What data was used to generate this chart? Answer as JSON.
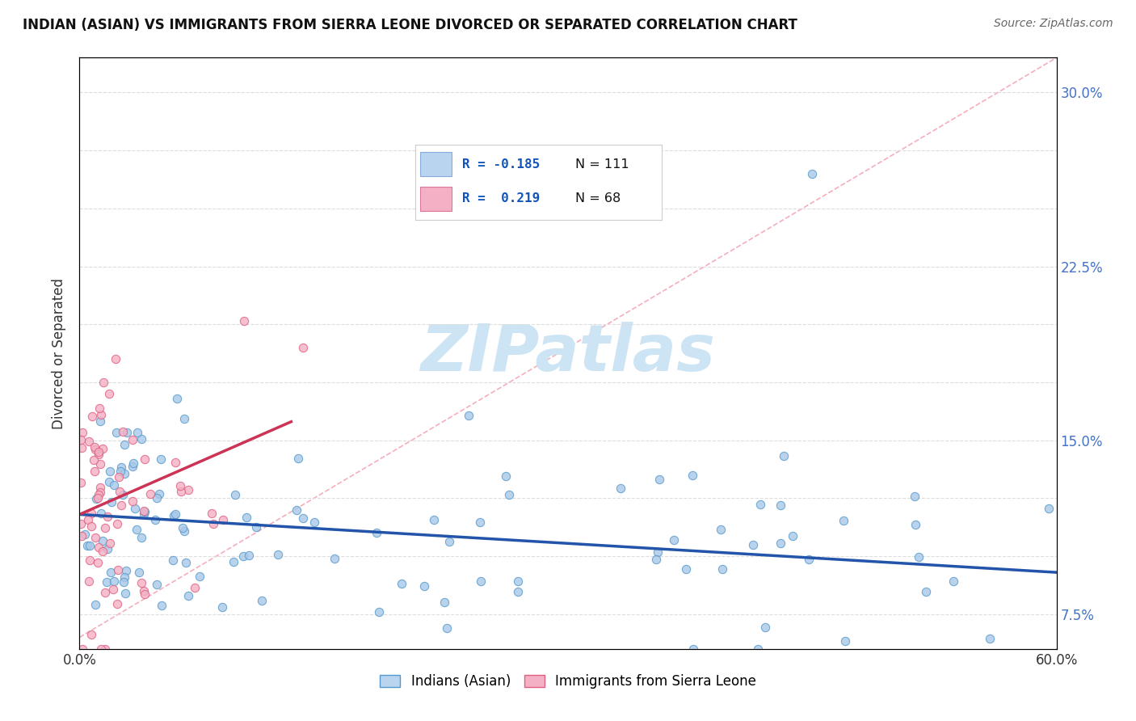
{
  "title": "INDIAN (ASIAN) VS IMMIGRANTS FROM SIERRA LEONE DIVORCED OR SEPARATED CORRELATION CHART",
  "source": "Source: ZipAtlas.com",
  "ylabel": "Divorced or Separated",
  "xlim": [
    0.0,
    0.6
  ],
  "ylim": [
    0.06,
    0.315
  ],
  "y_ticks": [
    0.075,
    0.1,
    0.125,
    0.15,
    0.175,
    0.2,
    0.225,
    0.25,
    0.275,
    0.3
  ],
  "y_tick_labels_right": [
    "7.5%",
    "",
    "",
    "15.0%",
    "",
    "",
    "22.5%",
    "",
    "",
    "30.0%"
  ],
  "blue_scatter_color": "#a8c8e8",
  "blue_scatter_edge": "#5599cc",
  "pink_scatter_color": "#f4b0c4",
  "pink_scatter_edge": "#e06080",
  "blue_line_color": "#2255aa",
  "pink_line_color": "#cc3355",
  "ref_line_color": "#f4a0b0",
  "watermark_color": "#cce4f4",
  "background_color": "#ffffff",
  "grid_color": "#dddddd",
  "legend_blue_R": "R = -0.185",
  "legend_blue_N": "N = 111",
  "legend_pink_R": "R =  0.219",
  "legend_pink_N": "N = 68",
  "legend_blue_face": "#b8d4ee",
  "legend_pink_face": "#f4b0c4",
  "bottom_legend_blue": "Indians (Asian)",
  "bottom_legend_pink": "Immigrants from Sierra Leone",
  "blue_line_x0": 0.0,
  "blue_line_x1": 0.6,
  "blue_line_y0": 0.118,
  "blue_line_y1": 0.093,
  "pink_line_x0": 0.0,
  "pink_line_x1": 0.13,
  "pink_line_y0": 0.118,
  "pink_line_y1": 0.158,
  "ref_line_x0": 0.0,
  "ref_line_x1": 0.6,
  "ref_line_y0": 0.065,
  "ref_line_y1": 0.315
}
